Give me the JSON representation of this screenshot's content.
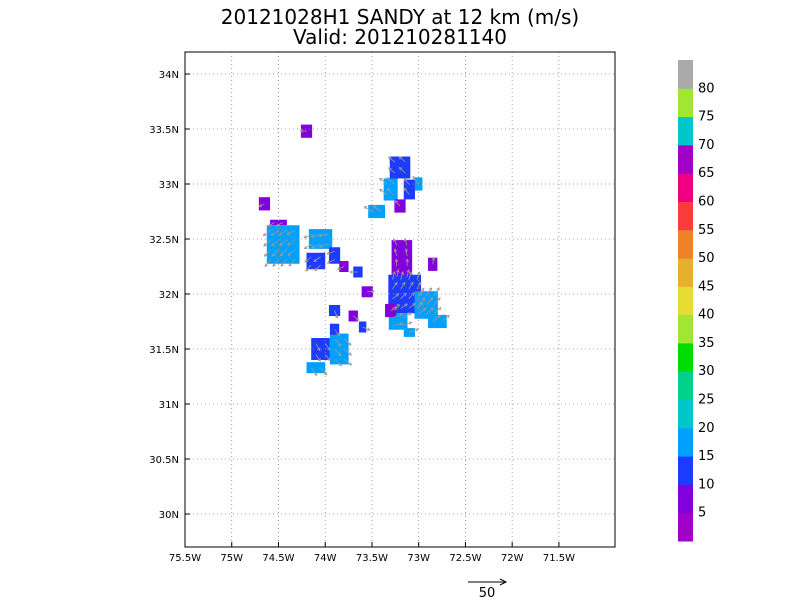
{
  "chart_data": {
    "type": "heatmap",
    "title_line1": "20121028H1 SANDY at 12 km (m/s)",
    "title_line2": "Valid: 201210281140",
    "xlim": [
      -75.5,
      -70.9
    ],
    "ylim": [
      29.7,
      34.2
    ],
    "x_ticks": [
      {
        "value": -75.5,
        "label": "75.5W"
      },
      {
        "value": -75.0,
        "label": "75W"
      },
      {
        "value": -74.5,
        "label": "74.5W"
      },
      {
        "value": -74.0,
        "label": "74W"
      },
      {
        "value": -73.5,
        "label": "73.5W"
      },
      {
        "value": -73.0,
        "label": "73W"
      },
      {
        "value": -72.5,
        "label": "72.5W"
      },
      {
        "value": -72.0,
        "label": "72W"
      },
      {
        "value": -71.5,
        "label": "71.5W"
      }
    ],
    "y_ticks": [
      {
        "value": 30.0,
        "label": "30N"
      },
      {
        "value": 30.5,
        "label": "30.5N"
      },
      {
        "value": 31.0,
        "label": "31N"
      },
      {
        "value": 31.5,
        "label": "31.5N"
      },
      {
        "value": 32.0,
        "label": "32N"
      },
      {
        "value": 32.5,
        "label": "32.5N"
      },
      {
        "value": 33.0,
        "label": "33N"
      },
      {
        "value": 33.5,
        "label": "33.5N"
      },
      {
        "value": 34.0,
        "label": "34N"
      }
    ],
    "grid": true,
    "colorbar": {
      "colors": [
        "#a000c8",
        "#8200dc",
        "#1e3cff",
        "#00a0ff",
        "#00c8c8",
        "#00d28c",
        "#00dc00",
        "#a0e632",
        "#e6dc32",
        "#e6af2d",
        "#f08228",
        "#fa3c3c",
        "#f00082",
        "#a000c8",
        "#00c8c8",
        "#a0e632",
        "#aaaaaa"
      ],
      "labels": [
        "5",
        "10",
        "15",
        "20",
        "25",
        "30",
        "35",
        "40",
        "45",
        "50",
        "55",
        "60",
        "65",
        "70",
        "75",
        "80"
      ]
    },
    "cells": [
      {
        "lon": -74.2,
        "lat": 33.48,
        "w": 0.12,
        "h": 0.12,
        "value": 5
      },
      {
        "lon": -74.65,
        "lat": 32.82,
        "w": 0.12,
        "h": 0.12,
        "value": 5
      },
      {
        "lon": -74.5,
        "lat": 32.65,
        "w": 0.18,
        "h": 0.05,
        "value": 8
      },
      {
        "lon": -74.45,
        "lat": 32.45,
        "w": 0.35,
        "h": 0.35,
        "value": 18
      },
      {
        "lon": -74.05,
        "lat": 32.5,
        "w": 0.25,
        "h": 0.18,
        "value": 18
      },
      {
        "lon": -74.1,
        "lat": 32.3,
        "w": 0.2,
        "h": 0.15,
        "value": 12
      },
      {
        "lon": -73.9,
        "lat": 32.35,
        "w": 0.12,
        "h": 0.15,
        "value": 12
      },
      {
        "lon": -73.8,
        "lat": 32.25,
        "w": 0.1,
        "h": 0.1,
        "value": 8
      },
      {
        "lon": -73.65,
        "lat": 32.2,
        "w": 0.1,
        "h": 0.1,
        "value": 12
      },
      {
        "lon": -73.55,
        "lat": 32.02,
        "w": 0.12,
        "h": 0.1,
        "value": 8
      },
      {
        "lon": -73.9,
        "lat": 31.85,
        "w": 0.12,
        "h": 0.1,
        "value": 12
      },
      {
        "lon": -73.7,
        "lat": 31.8,
        "w": 0.1,
        "h": 0.1,
        "value": 8
      },
      {
        "lon": -73.6,
        "lat": 31.7,
        "w": 0.08,
        "h": 0.1,
        "value": 12
      },
      {
        "lon": -73.2,
        "lat": 33.15,
        "w": 0.22,
        "h": 0.2,
        "value": 12
      },
      {
        "lon": -73.3,
        "lat": 32.95,
        "w": 0.15,
        "h": 0.2,
        "value": 18
      },
      {
        "lon": -73.1,
        "lat": 32.95,
        "w": 0.12,
        "h": 0.18,
        "value": 12
      },
      {
        "lon": -73.45,
        "lat": 32.75,
        "w": 0.18,
        "h": 0.12,
        "value": 18
      },
      {
        "lon": -73.2,
        "lat": 32.8,
        "w": 0.12,
        "h": 0.12,
        "value": 8
      },
      {
        "lon": -73.0,
        "lat": 33.0,
        "w": 0.08,
        "h": 0.12,
        "value": 18
      },
      {
        "lon": -73.18,
        "lat": 32.3,
        "w": 0.22,
        "h": 0.38,
        "value": 8
      },
      {
        "lon": -72.85,
        "lat": 32.27,
        "w": 0.1,
        "h": 0.12,
        "value": 8
      },
      {
        "lon": -73.15,
        "lat": 32.0,
        "w": 0.35,
        "h": 0.35,
        "value": 12
      },
      {
        "lon": -72.92,
        "lat": 31.9,
        "w": 0.25,
        "h": 0.25,
        "value": 18
      },
      {
        "lon": -72.8,
        "lat": 31.75,
        "w": 0.2,
        "h": 0.12,
        "value": 18
      },
      {
        "lon": -73.22,
        "lat": 31.75,
        "w": 0.2,
        "h": 0.15,
        "value": 18
      },
      {
        "lon": -73.1,
        "lat": 31.65,
        "w": 0.12,
        "h": 0.08,
        "value": 18
      },
      {
        "lon": -73.3,
        "lat": 31.85,
        "w": 0.12,
        "h": 0.12,
        "value": 8
      },
      {
        "lon": -74.05,
        "lat": 31.5,
        "w": 0.2,
        "h": 0.2,
        "value": 12
      },
      {
        "lon": -73.85,
        "lat": 31.5,
        "w": 0.2,
        "h": 0.28,
        "value": 18
      },
      {
        "lon": -74.1,
        "lat": 31.33,
        "w": 0.2,
        "h": 0.1,
        "value": 18
      },
      {
        "lon": -73.9,
        "lat": 31.68,
        "w": 0.1,
        "h": 0.1,
        "value": 12
      }
    ],
    "vector_scale": {
      "label": "50",
      "value": 50
    }
  }
}
